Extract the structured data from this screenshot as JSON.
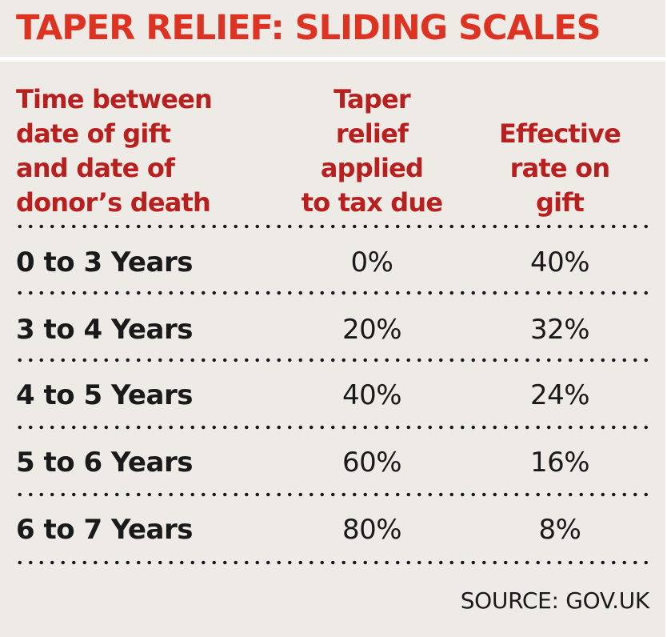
{
  "title": "TAPER RELIEF: SLIDING SCALES",
  "colors": {
    "title": "#dc3322",
    "header": "#b8201f",
    "background": "#eeebe6",
    "text": "#1a1a1a"
  },
  "chart_data": {
    "type": "table",
    "title": "TAPER RELIEF: SLIDING SCALES",
    "columns": [
      "Time between date of gift and date of donor’s death",
      "Taper relief applied to tax due",
      "Effective rate on gift"
    ],
    "rows": [
      [
        "0 to 3 Years",
        "0%",
        "40%"
      ],
      [
        "3 to 4 Years",
        "20%",
        "32%"
      ],
      [
        "4 to 5 Years",
        "40%",
        "24%"
      ],
      [
        "5 to 6 Years",
        "60%",
        "16%"
      ],
      [
        "6 to 7 Years",
        "80%",
        "8%"
      ]
    ],
    "source": "SOURCE: GOV.UK"
  },
  "header_lines": [
    "Time between\ndate of gift\nand date of\ndonor’s death",
    "Taper\nrelief\napplied\nto tax due",
    "Effective\nrate on\ngift"
  ]
}
